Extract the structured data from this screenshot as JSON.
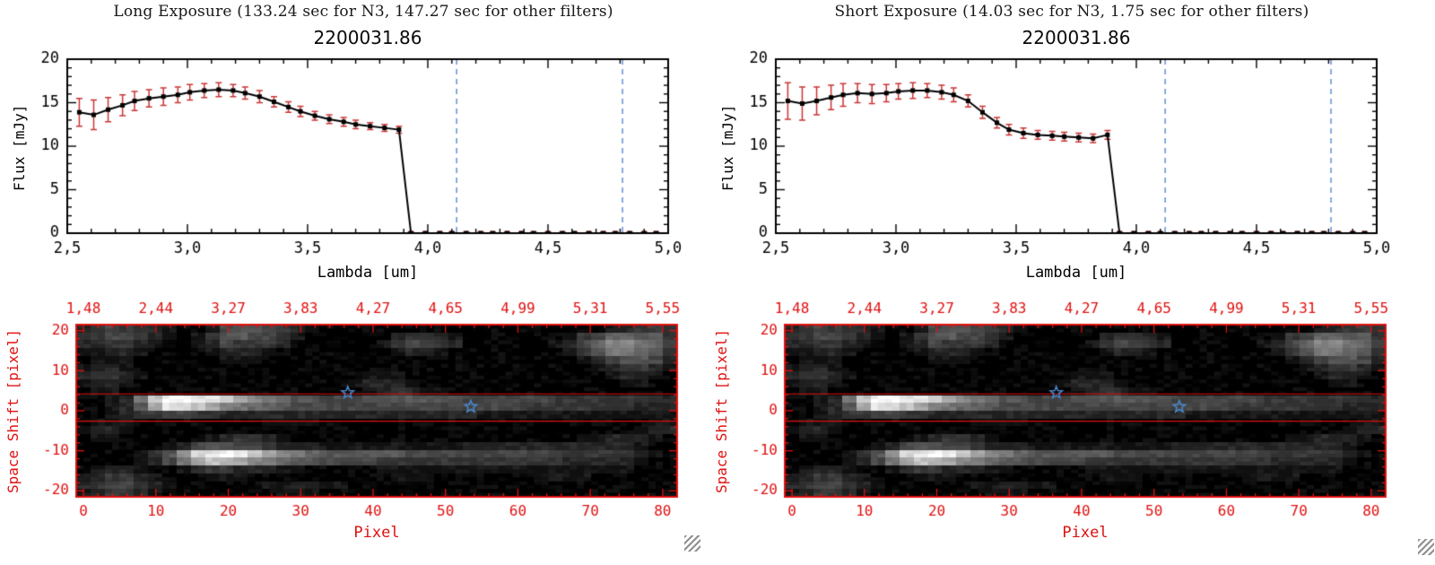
{
  "chart_data": [
    {
      "type": "line",
      "panel_heading": "Long Exposure (133.24 sec for N3, 147.27 sec for other filters)",
      "title": "2200031.86",
      "xlabel": "Lambda [um]",
      "ylabel": "Flux [mJy]",
      "xlim": [
        2.5,
        5.0
      ],
      "ylim": [
        0,
        20
      ],
      "xticks": [
        2.5,
        3.0,
        3.5,
        4.0,
        4.5,
        5.0
      ],
      "xtick_labels": [
        "2,5",
        "3,0",
        "3,5",
        "4,0",
        "4,5",
        "5,0"
      ],
      "xminor": 0.1,
      "yticks": [
        0,
        5,
        10,
        15,
        20
      ],
      "ytick_labels": [
        "0",
        "5",
        "10",
        "15",
        "20"
      ],
      "yminor": 1,
      "marker": "square",
      "line_color": "#000000",
      "error_color": "#c93434",
      "guide_color": "#6b95d6",
      "guide_lines_x": [
        4.12,
        4.81
      ],
      "x": [
        2.55,
        2.61,
        2.67,
        2.73,
        2.78,
        2.84,
        2.9,
        2.96,
        3.01,
        3.07,
        3.13,
        3.19,
        3.24,
        3.3,
        3.36,
        3.42,
        3.47,
        3.53,
        3.59,
        3.65,
        3.7,
        3.76,
        3.82,
        3.88,
        3.93,
        3.99,
        4.05,
        4.1,
        4.16,
        4.22,
        4.27,
        4.33,
        4.39,
        4.44,
        4.5,
        4.56,
        4.61,
        4.67,
        4.73,
        4.78,
        4.84,
        4.9,
        4.95
      ],
      "y": [
        13.9,
        13.6,
        14.2,
        14.7,
        15.2,
        15.5,
        15.7,
        15.9,
        16.2,
        16.4,
        16.5,
        16.4,
        16.1,
        15.7,
        15.1,
        14.5,
        14.0,
        13.5,
        13.1,
        12.8,
        12.5,
        12.3,
        12.1,
        11.9,
        0,
        0,
        0,
        0,
        0,
        0,
        0,
        0,
        0,
        0,
        0,
        0,
        0,
        0,
        0,
        0,
        0,
        0,
        0
      ],
      "yerr": [
        1.6,
        1.7,
        1.4,
        1.2,
        1.1,
        1.0,
        1.0,
        0.9,
        0.9,
        0.8,
        0.8,
        0.7,
        0.7,
        0.7,
        0.6,
        0.6,
        0.6,
        0.5,
        0.5,
        0.5,
        0.5,
        0.4,
        0.4,
        0.4,
        0.15,
        0.15,
        0.15,
        0.15,
        0.15,
        0.15,
        0.15,
        0.15,
        0.15,
        0.15,
        0.15,
        0.15,
        0.15,
        0.15,
        0.15,
        0.15,
        0.15,
        0.15,
        0.15
      ]
    },
    {
      "type": "line",
      "panel_heading": "Short Exposure (14.03 sec for N3, 1.75 sec for other filters)",
      "title": "2200031.86",
      "xlabel": "Lambda [um]",
      "ylabel": "Flux [mJy]",
      "xlim": [
        2.5,
        5.0
      ],
      "ylim": [
        0,
        20
      ],
      "xticks": [
        2.5,
        3.0,
        3.5,
        4.0,
        4.5,
        5.0
      ],
      "xtick_labels": [
        "2,5",
        "3,0",
        "3,5",
        "4,0",
        "4,5",
        "5,0"
      ],
      "xminor": 0.1,
      "yticks": [
        0,
        5,
        10,
        15,
        20
      ],
      "ytick_labels": [
        "0",
        "5",
        "10",
        "15",
        "20"
      ],
      "yminor": 1,
      "marker": "square",
      "line_color": "#000000",
      "error_color": "#c93434",
      "guide_color": "#6b95d6",
      "guide_lines_x": [
        4.12,
        4.81
      ],
      "x": [
        2.55,
        2.61,
        2.67,
        2.73,
        2.78,
        2.84,
        2.9,
        2.96,
        3.01,
        3.07,
        3.13,
        3.19,
        3.24,
        3.3,
        3.36,
        3.42,
        3.47,
        3.53,
        3.59,
        3.65,
        3.7,
        3.76,
        3.82,
        3.88,
        3.93,
        3.99,
        4.05,
        4.1,
        4.16,
        4.22,
        4.27,
        4.33,
        4.39,
        4.44,
        4.5,
        4.56,
        4.61,
        4.67,
        4.73,
        4.78,
        4.84,
        4.9,
        4.95
      ],
      "y": [
        15.2,
        14.9,
        15.2,
        15.6,
        15.9,
        16.1,
        16.0,
        16.1,
        16.3,
        16.4,
        16.4,
        16.2,
        15.9,
        15.2,
        13.9,
        12.7,
        11.9,
        11.5,
        11.3,
        11.2,
        11.1,
        11.0,
        10.9,
        11.3,
        0,
        0,
        0,
        0,
        0,
        0,
        0,
        0,
        0,
        0,
        0,
        0,
        0,
        0,
        0,
        0,
        0,
        0,
        0
      ],
      "yerr": [
        2.1,
        1.9,
        1.6,
        1.4,
        1.3,
        1.1,
        1.1,
        1.0,
        0.9,
        0.9,
        0.8,
        0.8,
        0.8,
        0.7,
        0.7,
        0.6,
        0.6,
        0.6,
        0.5,
        0.5,
        0.5,
        0.5,
        0.5,
        0.5,
        0.15,
        0.15,
        0.15,
        0.15,
        0.15,
        0.15,
        0.15,
        0.15,
        0.15,
        0.15,
        0.15,
        0.15,
        0.15,
        0.15,
        0.15,
        0.15,
        0.15,
        0.15,
        0.15
      ]
    },
    {
      "type": "heatmap",
      "panel": "Long Exposure",
      "xlabel": "Pixel",
      "ylabel": "Space Shift [pixel]",
      "xlim": [
        -1,
        82
      ],
      "ylim": [
        -21.5,
        21.5
      ],
      "xticks": [
        0,
        10,
        20,
        30,
        40,
        50,
        60,
        70,
        80
      ],
      "xtick_labels": [
        "0",
        "10",
        "20",
        "30",
        "40",
        "50",
        "60",
        "70",
        "80"
      ],
      "xminor": 2,
      "yticks": [
        20,
        10,
        0,
        -10,
        -20
      ],
      "ytick_labels": [
        "20",
        "10",
        "0",
        "-10",
        "-20"
      ],
      "yminor": 2,
      "top_axis_labels": [
        "1,48",
        "2,44",
        "3,27",
        "3,83",
        "4,27",
        "4,65",
        "4,99",
        "5,31",
        "5,55"
      ],
      "aperture_lines_y": [
        4.2,
        -2.6
      ],
      "stars": [
        [
          36.5,
          4.5
        ],
        [
          53.5,
          1.0
        ]
      ],
      "axis_color": "#e01010",
      "aperture_color": "#e01010",
      "star_color": "#4a86c8",
      "grid": [
        "234332100145543210000000000000000000012333",
        "334432101355443100000023321000000013466553",
        "223321001243332000000134432000000124688764",
        "112210000122210000000012210000000013577653",
        "011100000011100000000000000000000001245542",
        "122100000000000000000000000000000000123321",
        "233210000000000000001110000000000000012210",
        "122100000000000000012221000000000000001100",
        "011000000000000000001232110000000000000000",
        "00127cffeeca876554445555555444444333333332",
        "00125aedca87665444444444444444433333333222",
        "001233443322222222222222222211111111111111",
        "011100000000011110000000000000000000000011",
        "122100000000000000000000000000000000000122",
        "011000000123321000000000000000000001122210",
        "000000124554432221111111111222222222222100",
        "00001359deffca8765555554444444444433333210",
        "00001247acba876554444333333333333322222100",
        "012210012332221100000111111111111111111000",
        "123321000111000000000011100000001111000000",
        "234432100000011221100000000000000000000000",
        "123321000000001110000000000000000000000000"
      ]
    },
    {
      "type": "heatmap",
      "panel": "Short Exposure",
      "xlabel": "Pixel",
      "ylabel": "Space Shift [pixel]",
      "xlim": [
        -1,
        82
      ],
      "ylim": [
        -21.5,
        21.5
      ],
      "xticks": [
        0,
        10,
        20,
        30,
        40,
        50,
        60,
        70,
        80
      ],
      "xtick_labels": [
        "0",
        "10",
        "20",
        "30",
        "40",
        "50",
        "60",
        "70",
        "80"
      ],
      "xminor": 2,
      "yticks": [
        20,
        10,
        0,
        -10,
        -20
      ],
      "ytick_labels": [
        "20",
        "10",
        "0",
        "-10",
        "-20"
      ],
      "yminor": 2,
      "top_axis_labels": [
        "1,48",
        "2,44",
        "3,27",
        "3,83",
        "4,27",
        "4,65",
        "4,99",
        "5,31",
        "5,55"
      ],
      "aperture_lines_y": [
        4.2,
        -2.6
      ],
      "stars": [
        [
          36.5,
          4.5
        ],
        [
          53.5,
          1.0
        ]
      ],
      "axis_color": "#e01010",
      "aperture_color": "#e01010",
      "star_color": "#4a86c8",
      "grid": [
        "234332100145543210000000000000000000012333",
        "334432101355443100000023321000000013466553",
        "223321001243332000000134432000000124688764",
        "112210000122210000000012210000000013577653",
        "011100000011100000000000000000000001245542",
        "122100000000000000000000000000000000123321",
        "233210000000000000001110000000000000012210",
        "122100000000000000012221000000000000001100",
        "011000000000000000001232110000000000000000",
        "00127cffeeca876554445555555444444333333332",
        "00125aedca87665444444444444444433333333222",
        "001233443322222222222222222211111111111111",
        "011100000000011110000000000000000000000011",
        "122100000000000000000000000000000000000122",
        "011000000123321000000000000000000001122210",
        "000000124554432221111111111222222222222100",
        "00001359deffca8765555554444444444433333210",
        "00001247acba876554444333333333333322222100",
        "012210012332221100000111111111111111111000",
        "123321000111000000000011100000001111000000",
        "234432100000011221100000000000000000000000",
        "123321000000001110000000000000000000000000"
      ]
    }
  ]
}
